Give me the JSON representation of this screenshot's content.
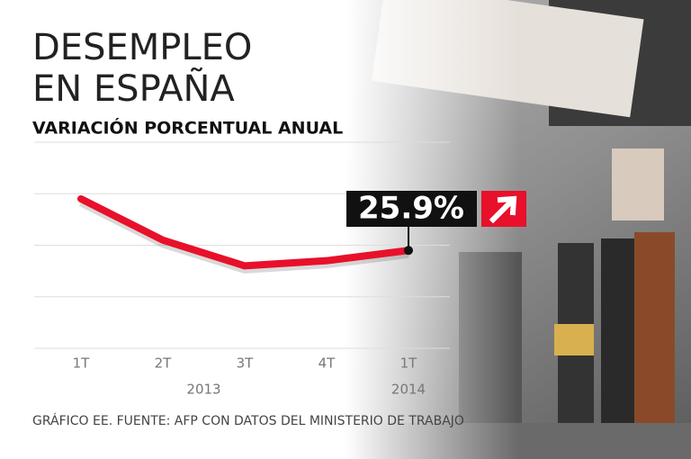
{
  "chart_data": {
    "type": "line",
    "title": "DESEMPLEO",
    "title_line2": "EN ESPAÑA",
    "subtitle": "VARIACIÓN PORCENTUAL ANUAL",
    "source": "GRÁFICO EE. FUENTE: AFP CON DATOS DEL MINISTERIO DE TRABAJO",
    "categories": [
      "1T",
      "2T",
      "3T",
      "4T",
      "1T"
    ],
    "year_labels": [
      "2013",
      "2014"
    ],
    "series": [
      {
        "name": "Desempleo",
        "color": "#e8102a",
        "values": [
          26.9,
          26.1,
          25.6,
          25.7,
          25.9
        ],
        "value_labels": [
          null,
          null,
          null,
          null,
          "25.9%"
        ]
      }
    ],
    "ylim": [
      24,
      28
    ],
    "yticks": [
      24,
      25,
      26,
      27,
      28
    ],
    "grid": true
  }
}
